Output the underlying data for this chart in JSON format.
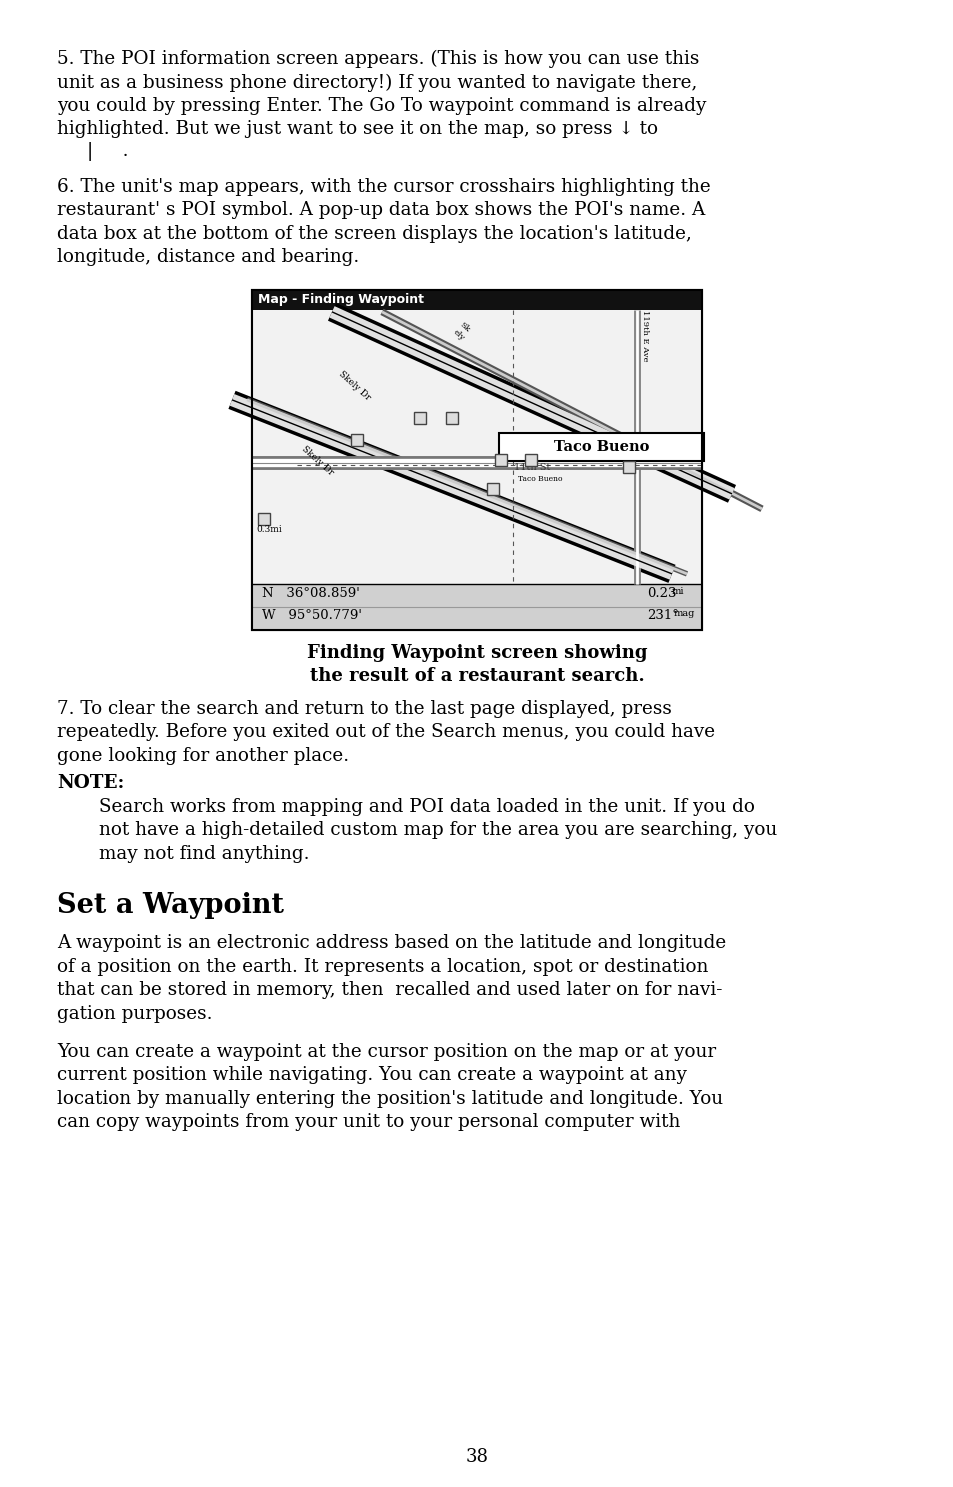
{
  "bg_color": "#ffffff",
  "text_color": "#000000",
  "page_number": "38",
  "para5_lines": [
    "5. The POI information screen appears. (This is how you can use this",
    "unit as a business phone directory!) If you wanted to navigate there,",
    "you could by pressing Enter. The Go To waypoint command is already",
    "highlighted. But we just want to see it on the map, so press ↓ to"
  ],
  "para5_indent_text": "|     .",
  "para6_lines": [
    "6. The unit's map appears, with the cursor crosshairs highlighting the",
    "restaurant' s POI symbol. A pop-up data box shows the POI's name. A",
    "data box at the bottom of the screen displays the location's latitude,",
    "longitude, distance and bearing."
  ],
  "caption_line1": "Finding Waypoint screen showing",
  "caption_line2": "the result of a restaurant search.",
  "para7_lines": [
    "7. To clear the search and return to the last page displayed, press",
    "repeatedly. Before you exited out of the Search menus, you could have",
    "gone looking for another place."
  ],
  "note_label": "NOTE:",
  "note_lines": [
    "Search works from mapping and POI data loaded in the unit. If you do",
    "not have a high-detailed custom map for the area you are searching, you",
    "may not find anything."
  ],
  "section_title": "Set a Waypoint",
  "section_para1_lines": [
    "A waypoint is an electronic address based on the latitude and longitude",
    "of a position on the earth. It represents a location, spot or destination",
    "that can be stored in memory, then  recalled and used later on for navi-",
    "gation purposes."
  ],
  "section_para2_lines": [
    "You can create a waypoint at the cursor position on the map or at your",
    "current position while navigating. You can create a waypoint at any",
    "location by manually entering the position's latitude and longitude. You",
    "can copy waypoints from your unit to your personal computer with"
  ],
  "map_title": "Map - Finding Waypoint",
  "map_coord_n": "N   36°08.859'",
  "map_coord_w": "W   95°50.779'",
  "map_dist": "0.23",
  "map_dist_sup": "mi",
  "map_bearing": "231°",
  "map_bearing_sup": "mag"
}
